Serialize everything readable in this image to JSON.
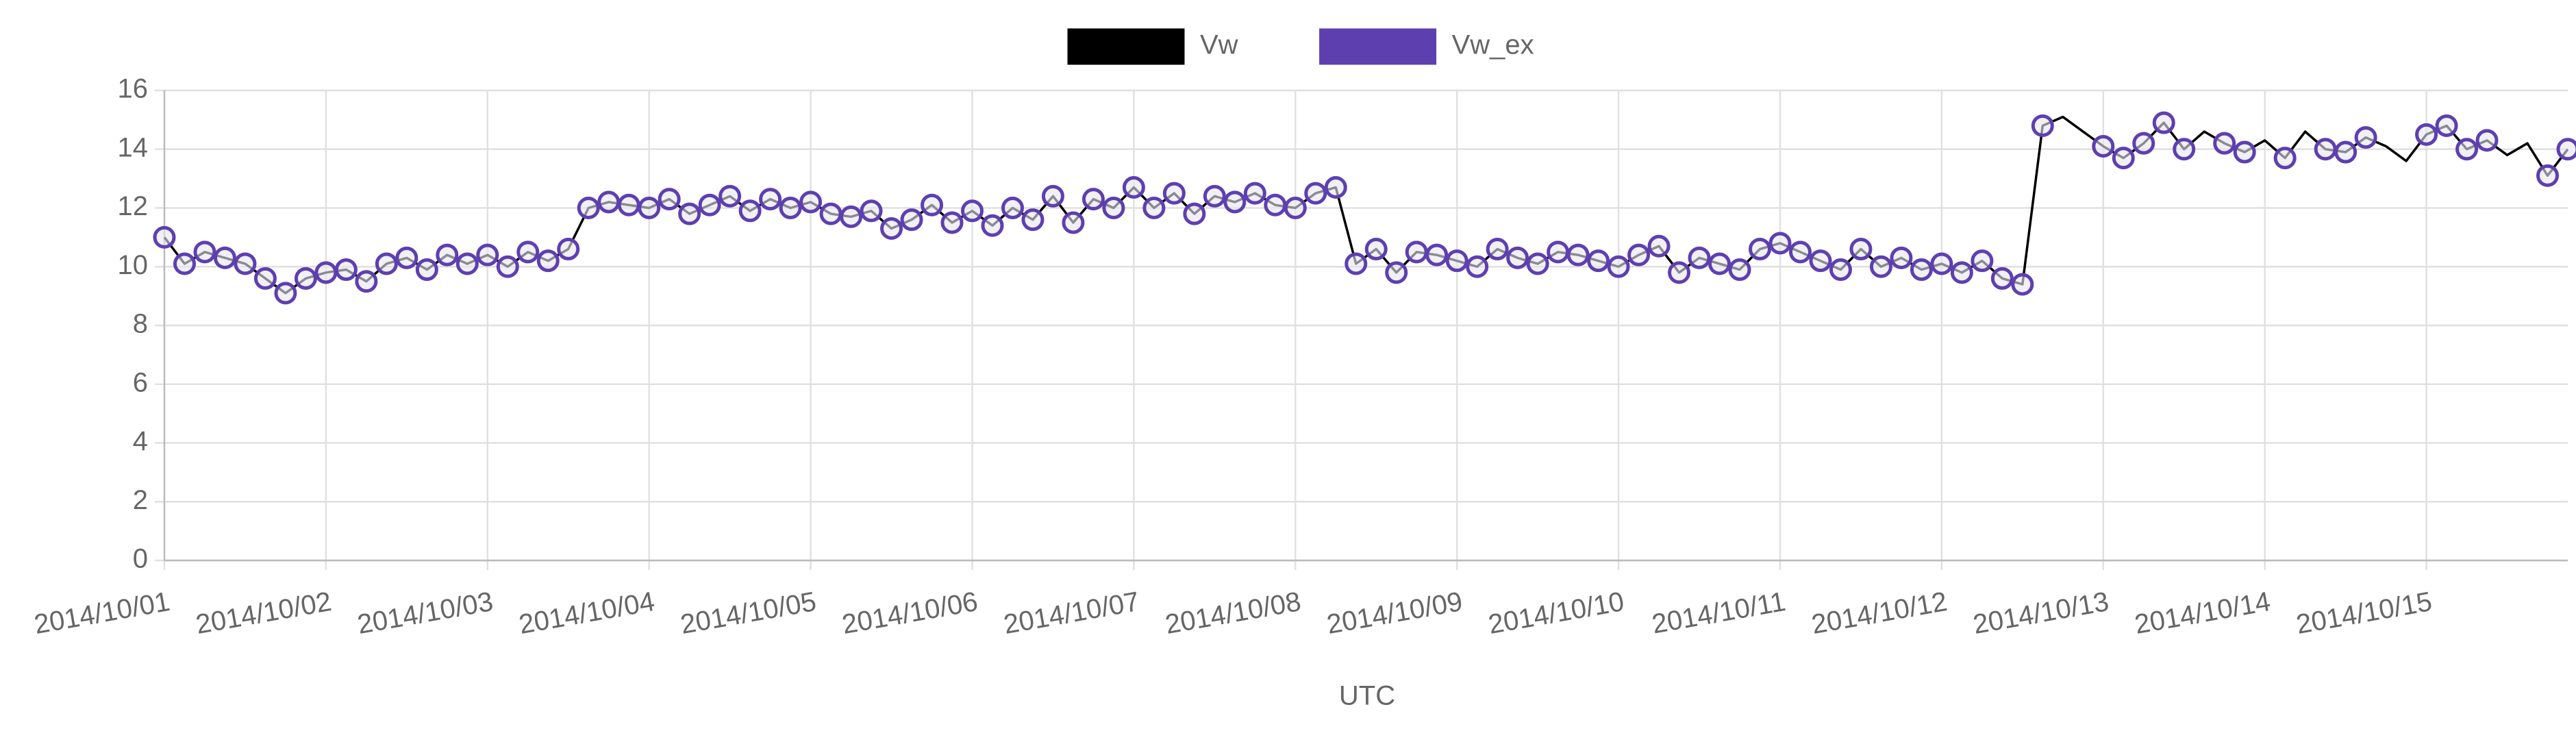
{
  "chart_data": {
    "type": "line",
    "x": [
      "2014/10/01 00:00",
      "2014/10/01 03:00",
      "2014/10/01 06:00",
      "2014/10/01 09:00",
      "2014/10/01 12:00",
      "2014/10/01 15:00",
      "2014/10/01 18:00",
      "2014/10/01 21:00",
      "2014/10/02 00:00",
      "2014/10/02 03:00",
      "2014/10/02 06:00",
      "2014/10/02 09:00",
      "2014/10/02 12:00",
      "2014/10/02 15:00",
      "2014/10/02 18:00",
      "2014/10/02 21:00",
      "2014/10/03 00:00",
      "2014/10/03 03:00",
      "2014/10/03 06:00",
      "2014/10/03 09:00",
      "2014/10/03 12:00",
      "2014/10/03 15:00",
      "2014/10/03 18:00",
      "2014/10/03 21:00",
      "2014/10/04 00:00",
      "2014/10/04 03:00",
      "2014/10/04 06:00",
      "2014/10/04 09:00",
      "2014/10/04 12:00",
      "2014/10/04 15:00",
      "2014/10/04 18:00",
      "2014/10/04 21:00",
      "2014/10/05 00:00",
      "2014/10/05 03:00",
      "2014/10/05 06:00",
      "2014/10/05 09:00",
      "2014/10/05 12:00",
      "2014/10/05 15:00",
      "2014/10/05 18:00",
      "2014/10/05 21:00",
      "2014/10/06 00:00",
      "2014/10/06 03:00",
      "2014/10/06 06:00",
      "2014/10/06 09:00",
      "2014/10/06 12:00",
      "2014/10/06 15:00",
      "2014/10/06 18:00",
      "2014/10/06 21:00",
      "2014/10/07 00:00",
      "2014/10/07 03:00",
      "2014/10/07 06:00",
      "2014/10/07 09:00",
      "2014/10/07 12:00",
      "2014/10/07 15:00",
      "2014/10/07 18:00",
      "2014/10/07 21:00",
      "2014/10/08 00:00",
      "2014/10/08 03:00",
      "2014/10/08 06:00",
      "2014/10/08 09:00",
      "2014/10/08 12:00",
      "2014/10/08 15:00",
      "2014/10/08 18:00",
      "2014/10/08 21:00",
      "2014/10/09 00:00",
      "2014/10/09 03:00",
      "2014/10/09 06:00",
      "2014/10/09 09:00",
      "2014/10/09 12:00",
      "2014/10/09 15:00",
      "2014/10/09 18:00",
      "2014/10/09 21:00",
      "2014/10/10 00:00",
      "2014/10/10 03:00",
      "2014/10/10 06:00",
      "2014/10/10 09:00",
      "2014/10/10 12:00",
      "2014/10/10 15:00",
      "2014/10/10 18:00",
      "2014/10/10 21:00",
      "2014/10/11 00:00",
      "2014/10/11 03:00",
      "2014/10/11 06:00",
      "2014/10/11 09:00",
      "2014/10/11 12:00",
      "2014/10/11 15:00",
      "2014/10/11 18:00",
      "2014/10/11 21:00",
      "2014/10/12 00:00",
      "2014/10/12 03:00",
      "2014/10/12 06:00",
      "2014/10/12 09:00",
      "2014/10/12 12:00",
      "2014/10/12 15:00",
      "2014/10/12 18:00",
      "2014/10/12 21:00",
      "2014/10/13 00:00",
      "2014/10/13 03:00",
      "2014/10/13 06:00",
      "2014/10/13 09:00",
      "2014/10/13 12:00",
      "2014/10/13 15:00",
      "2014/10/13 18:00",
      "2014/10/13 21:00",
      "2014/10/14 00:00",
      "2014/10/14 03:00",
      "2014/10/14 06:00",
      "2014/10/14 09:00",
      "2014/10/14 12:00",
      "2014/10/14 15:00",
      "2014/10/14 18:00",
      "2014/10/14 21:00",
      "2014/10/15 00:00",
      "2014/10/15 03:00",
      "2014/10/15 06:00",
      "2014/10/15 09:00",
      "2014/10/15 12:00",
      "2014/10/15 15:00",
      "2014/10/15 18:00",
      "2014/10/15 21:00"
    ],
    "series": [
      {
        "name": "Vw",
        "color": "#000000",
        "values": [
          11.0,
          10.1,
          10.5,
          10.3,
          10.1,
          9.6,
          9.1,
          9.6,
          9.8,
          9.9,
          9.5,
          10.1,
          10.3,
          9.9,
          10.4,
          10.1,
          10.4,
          10.0,
          10.5,
          10.2,
          10.6,
          12.0,
          12.2,
          12.1,
          12.0,
          12.3,
          11.8,
          12.1,
          12.4,
          11.9,
          12.3,
          12.0,
          12.2,
          11.8,
          11.7,
          11.9,
          11.3,
          11.6,
          12.1,
          11.5,
          11.9,
          11.4,
          12.0,
          11.6,
          12.4,
          11.5,
          12.3,
          12.0,
          12.7,
          12.0,
          12.5,
          11.8,
          12.4,
          12.2,
          12.5,
          12.1,
          12.0,
          12.5,
          12.7,
          10.1,
          10.6,
          9.8,
          10.5,
          10.4,
          10.2,
          10.0,
          10.6,
          10.3,
          10.1,
          10.5,
          10.4,
          10.2,
          10.0,
          10.4,
          10.7,
          9.8,
          10.3,
          10.1,
          9.9,
          10.6,
          10.8,
          10.5,
          10.2,
          9.9,
          10.6,
          10.0,
          10.3,
          9.9,
          10.1,
          9.8,
          10.2,
          9.6,
          9.4,
          14.8,
          15.1,
          14.6,
          14.1,
          13.7,
          14.2,
          14.9,
          14.0,
          14.6,
          14.2,
          13.9,
          14.3,
          13.7,
          14.6,
          14.0,
          13.9,
          14.4,
          14.1,
          13.6,
          14.5,
          14.8,
          14.0,
          14.3,
          13.8,
          14.2,
          13.1,
          14.0
        ]
      },
      {
        "name": "Vw_ex",
        "color": "#5e3fb0",
        "values": [
          11.0,
          10.1,
          10.5,
          10.3,
          10.1,
          9.6,
          9.1,
          9.6,
          9.8,
          9.9,
          9.5,
          10.1,
          10.3,
          9.9,
          10.4,
          10.1,
          10.4,
          10.0,
          10.5,
          10.2,
          10.6,
          12.0,
          12.2,
          12.1,
          12.0,
          12.3,
          11.8,
          12.1,
          12.4,
          11.9,
          12.3,
          12.0,
          12.2,
          11.8,
          11.7,
          11.9,
          11.3,
          11.6,
          12.1,
          11.5,
          11.9,
          11.4,
          12.0,
          11.6,
          12.4,
          11.5,
          12.3,
          12.0,
          12.7,
          12.0,
          12.5,
          11.8,
          12.4,
          12.2,
          12.5,
          12.1,
          12.0,
          12.5,
          12.7,
          10.1,
          10.6,
          9.8,
          10.5,
          10.4,
          10.2,
          10.0,
          10.6,
          10.3,
          10.1,
          10.5,
          10.4,
          10.2,
          10.0,
          10.4,
          10.7,
          9.8,
          10.3,
          10.1,
          9.9,
          10.6,
          10.8,
          10.5,
          10.2,
          9.9,
          10.6,
          10.0,
          10.3,
          9.9,
          10.1,
          9.8,
          10.2,
          9.6,
          9.4,
          14.8,
          null,
          null,
          14.1,
          13.7,
          14.2,
          14.9,
          14.0,
          null,
          14.2,
          13.9,
          null,
          13.7,
          null,
          14.0,
          13.9,
          14.4,
          null,
          null,
          14.5,
          14.8,
          14.0,
          14.3,
          null,
          null,
          13.1,
          14.0
        ]
      }
    ],
    "xlabel": "UTC",
    "xlim": [
      "2014/10/01 00:00",
      "2014/10/15 21:00"
    ],
    "xticks": [
      "2014/10/01",
      "2014/10/02",
      "2014/10/03",
      "2014/10/04",
      "2014/10/05",
      "2014/10/06",
      "2014/10/07",
      "2014/10/08",
      "2014/10/09",
      "2014/10/10",
      "2014/10/11",
      "2014/10/12",
      "2014/10/13",
      "2014/10/14",
      "2014/10/15"
    ],
    "ylim": [
      0,
      16
    ],
    "yticks": [
      0,
      2,
      4,
      6,
      8,
      10,
      12,
      14,
      16
    ],
    "grid": true,
    "legend": "top"
  }
}
